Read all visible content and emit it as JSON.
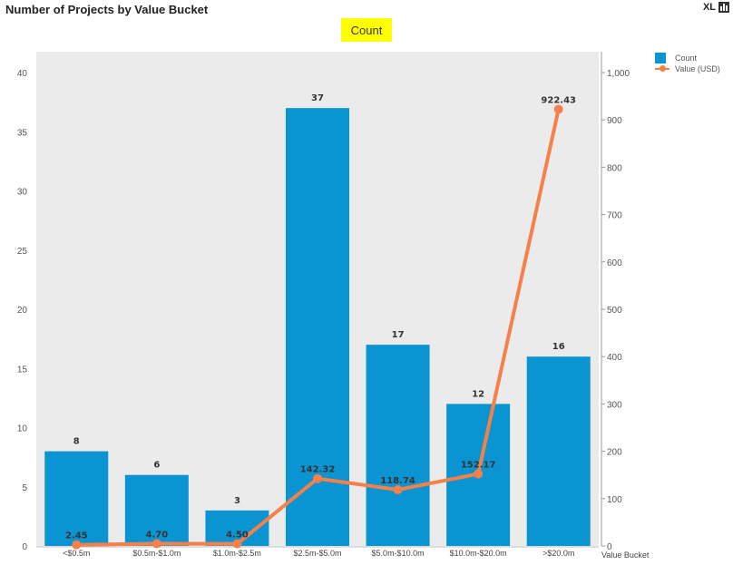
{
  "header": {
    "title": "Number of Projects by Value Bucket",
    "highlight_label": "Count",
    "export_label": "XL",
    "chart_icon": "bar-chart-icon"
  },
  "colors": {
    "bar": "#0b94d2",
    "line": "#f5804a",
    "plot_background": "#ebebeb",
    "highlight": "#ffff00"
  },
  "chart_data": {
    "type": "bar",
    "title": "Number of Projects by Value Bucket",
    "xlabel": "Value Bucket",
    "categories": [
      "<$0.5m",
      "$0.5m-$1.0m",
      "$1.0m-$2.5m",
      "$2.5m-$5.0m",
      "$5.0m-$10.0m",
      "$10.0m-$20.0m",
      ">$20.0m"
    ],
    "series": [
      {
        "name": "Count",
        "type": "bar",
        "axis": "left",
        "values": [
          8,
          6,
          3,
          37,
          17,
          12,
          16
        ],
        "labels": [
          "8",
          "6",
          "3",
          "37",
          "17",
          "12",
          "16"
        ]
      },
      {
        "name": "Value (USD)",
        "type": "line",
        "axis": "right",
        "values": [
          2.45,
          4.7,
          4.5,
          142.32,
          118.74,
          152.17,
          922.43
        ],
        "labels": [
          "2.45",
          "4.70",
          "4.50",
          "142.32",
          "118.74",
          "152.17",
          "922.43"
        ]
      }
    ],
    "y_left": {
      "min": 0,
      "max": 40,
      "ticks": [
        "0",
        "5",
        "10",
        "15",
        "20",
        "25",
        "30",
        "35",
        "40"
      ]
    },
    "y_right": {
      "min": 0,
      "max": 1000,
      "ticks": [
        "0",
        "100",
        "200",
        "300",
        "400",
        "500",
        "600",
        "700",
        "800",
        "900",
        "1,000"
      ]
    },
    "legend": {
      "position": "top-right",
      "items": [
        "Count",
        "Value (USD)"
      ]
    },
    "grid": false
  }
}
